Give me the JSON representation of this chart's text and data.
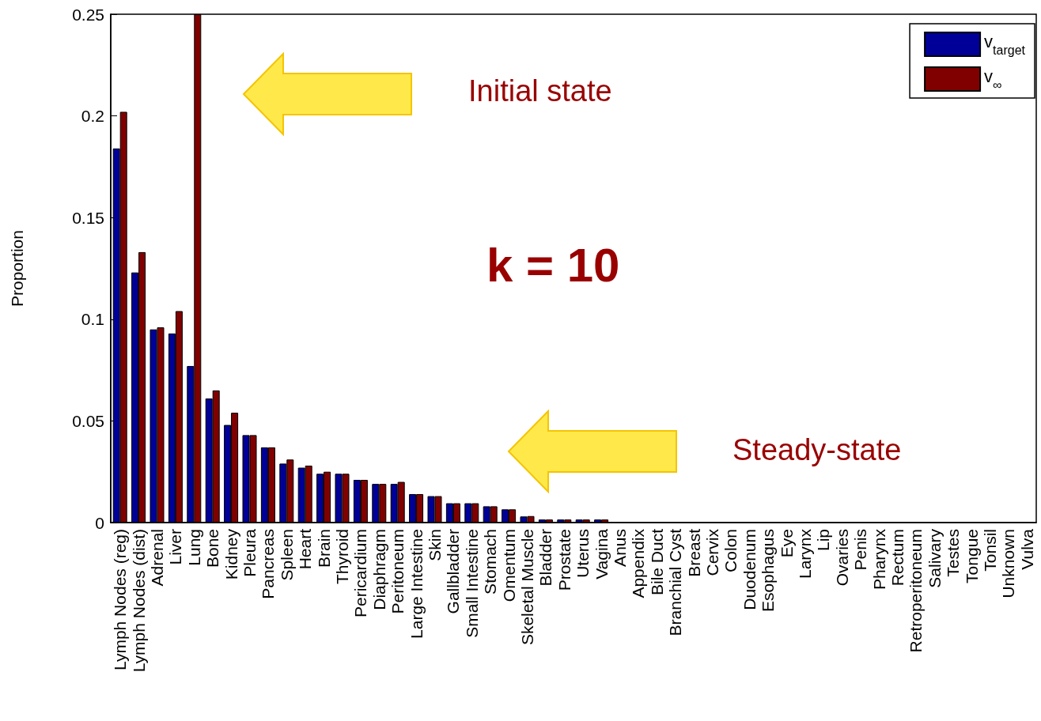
{
  "chart_data": {
    "type": "bar",
    "ylabel": "Proportion",
    "categories": [
      "Lymph Nodes (reg)",
      "Lymph Nodes (dist)",
      "Adrenal",
      "Liver",
      "Lung",
      "Bone",
      "Kidney",
      "Pleura",
      "Pancreas",
      "Spleen",
      "Heart",
      "Brain",
      "Thyroid",
      "Pericardium",
      "Diaphragm",
      "Peritoneum",
      "Large Intestine",
      "Skin",
      "Gallbladder",
      "Small Intestine",
      "Stomach",
      "Omentum",
      "Skeletal Muscle",
      "Bladder",
      "Prostate",
      "Uterus",
      "Vagina",
      "Anus",
      "Appendix",
      "Bile Duct",
      "Branchial Cyst",
      "Breast",
      "Cervix",
      "Colon",
      "Duodenum",
      "Esophagus",
      "Eye",
      "Larynx",
      "Lip",
      "Ovaries",
      "Penis",
      "Pharynx",
      "Rectum",
      "Retroperitoneum",
      "Salivary",
      "Testes",
      "Tongue",
      "Tonsil",
      "Unknown",
      "Vulva"
    ],
    "series": [
      {
        "name": "v$_{target}$",
        "color": "#000099",
        "values": [
          0.184,
          0.123,
          0.095,
          0.093,
          0.077,
          0.061,
          0.048,
          0.043,
          0.037,
          0.029,
          0.027,
          0.024,
          0.024,
          0.021,
          0.019,
          0.019,
          0.014,
          0.013,
          0.0095,
          0.0095,
          0.008,
          0.0065,
          0.003,
          0.0015,
          0.0015,
          0.0015,
          0.0015,
          0,
          0,
          0,
          0,
          0,
          0,
          0,
          0,
          0,
          0,
          0,
          0,
          0,
          0,
          0,
          0,
          0,
          0,
          0,
          0,
          0,
          0,
          0
        ]
      },
      {
        "name": "v$_{∞}$",
        "color": "#800000",
        "values": [
          0.202,
          0.133,
          0.096,
          0.104,
          0.25,
          0.065,
          0.054,
          0.043,
          0.037,
          0.031,
          0.028,
          0.025,
          0.024,
          0.021,
          0.019,
          0.02,
          0.014,
          0.013,
          0.0095,
          0.0095,
          0.008,
          0.0065,
          0.0032,
          0.0015,
          0.0015,
          0.0015,
          0.0015,
          0,
          0,
          0,
          0,
          0,
          0,
          0,
          0,
          0,
          0,
          0,
          0,
          0,
          0,
          0,
          0,
          0,
          0,
          0,
          0,
          0,
          0,
          0
        ]
      }
    ],
    "ylim": [
      0,
      0.25
    ],
    "yticks": [
      0,
      0.05,
      0.1,
      0.15,
      0.2,
      0.25
    ],
    "grid": false,
    "legend": "top right",
    "annotations": [
      "Initial state",
      "Steady-state",
      "k = 10"
    ]
  }
}
